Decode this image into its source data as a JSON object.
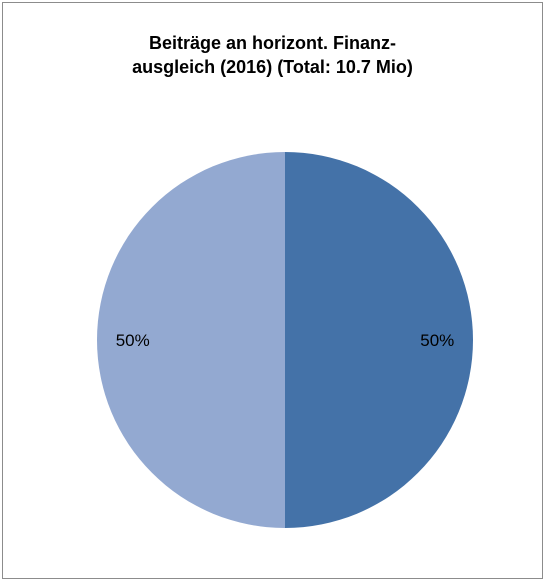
{
  "chart_data": {
    "type": "pie",
    "title_lines": [
      "Beiträge an horizont. Finanz-",
      "ausgleich (2016) (Total: 10.7 Mio)"
    ],
    "slices": [
      {
        "value": 50,
        "label": "50%",
        "color": "#4472a8"
      },
      {
        "value": 50,
        "label": "50%",
        "color": "#93a9d1"
      }
    ],
    "legend": "none"
  }
}
